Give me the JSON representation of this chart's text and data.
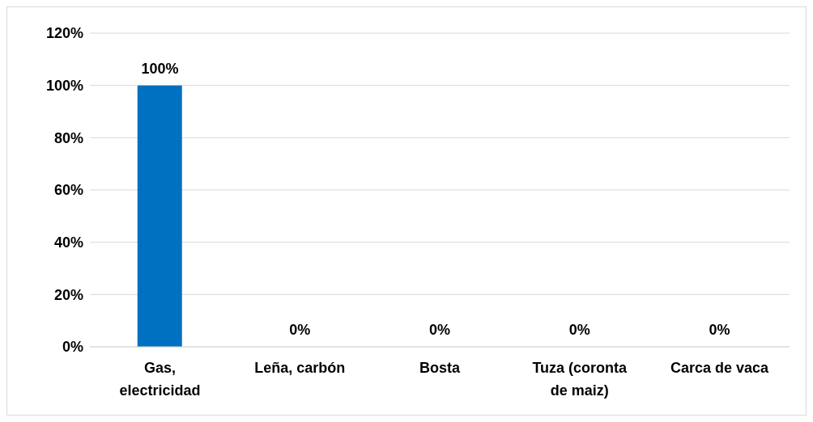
{
  "chart_data": {
    "type": "bar",
    "categories": [
      "Gas, electricidad",
      "Leña, carbón",
      "Bosta",
      "Tuza (coronta de maiz)",
      "Carca de vaca"
    ],
    "values": [
      100,
      0,
      0,
      0,
      0
    ],
    "value_labels": [
      "100%",
      "0%",
      "0%",
      "0%",
      "0%"
    ],
    "color": "#0070c0",
    "ylim": [
      0,
      120
    ],
    "yticks": [
      {
        "value": 0,
        "label": "0%"
      },
      {
        "value": 20,
        "label": "20%"
      },
      {
        "value": 40,
        "label": "40%"
      },
      {
        "value": 60,
        "label": "60%"
      },
      {
        "value": 80,
        "label": "80%"
      },
      {
        "value": 100,
        "label": "100%"
      },
      {
        "value": 120,
        "label": "120%"
      }
    ],
    "grid": "y"
  }
}
